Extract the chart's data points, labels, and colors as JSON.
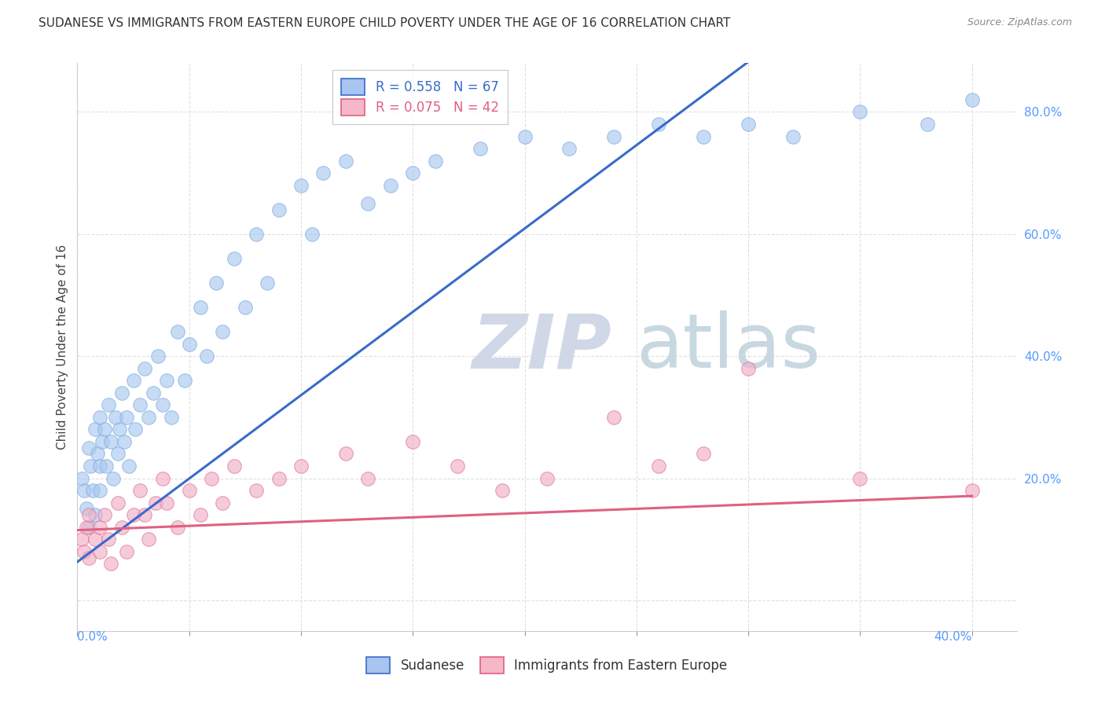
{
  "title": "SUDANESE VS IMMIGRANTS FROM EASTERN EUROPE CHILD POVERTY UNDER THE AGE OF 16 CORRELATION CHART",
  "source": "Source: ZipAtlas.com",
  "ylabel": "Child Poverty Under the Age of 16",
  "xlim": [
    0.0,
    0.42
  ],
  "ylim": [
    -0.05,
    0.88
  ],
  "yticks": [
    0.0,
    0.2,
    0.4,
    0.6,
    0.8
  ],
  "xticks": [
    0.0,
    0.05,
    0.1,
    0.15,
    0.2,
    0.25,
    0.3,
    0.35,
    0.4
  ],
  "legend1_label": "R = 0.558   N = 67",
  "legend2_label": "R = 0.075   N = 42",
  "legend1_face": "#a8c4f0",
  "legend2_face": "#f5b8c8",
  "line1_color": "#3a6bc9",
  "line2_color": "#e06080",
  "scatter1_face": "#aac8f0",
  "scatter1_edge": "#7aaae0",
  "scatter2_face": "#f0b0c8",
  "scatter2_edge": "#e07090",
  "tick_color": "#5599ff",
  "ylabel_color": "#444444",
  "grid_color": "#e0e0e0",
  "watermark_zip_color": "#d0d8e8",
  "watermark_atlas_color": "#c8d8e0",
  "bottom_legend1": "Sudanese",
  "bottom_legend2": "Immigrants from Eastern Europe",
  "sudanese_x": [
    0.002,
    0.003,
    0.004,
    0.005,
    0.005,
    0.006,
    0.007,
    0.008,
    0.008,
    0.009,
    0.01,
    0.01,
    0.01,
    0.011,
    0.012,
    0.013,
    0.014,
    0.015,
    0.016,
    0.017,
    0.018,
    0.019,
    0.02,
    0.021,
    0.022,
    0.023,
    0.025,
    0.026,
    0.028,
    0.03,
    0.032,
    0.034,
    0.036,
    0.038,
    0.04,
    0.042,
    0.045,
    0.048,
    0.05,
    0.055,
    0.058,
    0.062,
    0.065,
    0.07,
    0.075,
    0.08,
    0.085,
    0.09,
    0.1,
    0.105,
    0.11,
    0.12,
    0.13,
    0.14,
    0.15,
    0.16,
    0.18,
    0.2,
    0.22,
    0.24,
    0.26,
    0.28,
    0.3,
    0.32,
    0.35,
    0.38,
    0.4
  ],
  "sudanese_y": [
    0.2,
    0.18,
    0.15,
    0.25,
    0.12,
    0.22,
    0.18,
    0.28,
    0.14,
    0.24,
    0.3,
    0.22,
    0.18,
    0.26,
    0.28,
    0.22,
    0.32,
    0.26,
    0.2,
    0.3,
    0.24,
    0.28,
    0.34,
    0.26,
    0.3,
    0.22,
    0.36,
    0.28,
    0.32,
    0.38,
    0.3,
    0.34,
    0.4,
    0.32,
    0.36,
    0.3,
    0.44,
    0.36,
    0.42,
    0.48,
    0.4,
    0.52,
    0.44,
    0.56,
    0.48,
    0.6,
    0.52,
    0.64,
    0.68,
    0.6,
    0.7,
    0.72,
    0.65,
    0.68,
    0.7,
    0.72,
    0.74,
    0.76,
    0.74,
    0.76,
    0.78,
    0.76,
    0.78,
    0.76,
    0.8,
    0.78,
    0.82
  ],
  "eastern_x": [
    0.002,
    0.003,
    0.004,
    0.005,
    0.005,
    0.008,
    0.01,
    0.01,
    0.012,
    0.014,
    0.015,
    0.018,
    0.02,
    0.022,
    0.025,
    0.028,
    0.03,
    0.032,
    0.035,
    0.038,
    0.04,
    0.045,
    0.05,
    0.055,
    0.06,
    0.065,
    0.07,
    0.08,
    0.09,
    0.1,
    0.12,
    0.13,
    0.15,
    0.17,
    0.19,
    0.21,
    0.24,
    0.26,
    0.28,
    0.3,
    0.35,
    0.4
  ],
  "eastern_y": [
    0.1,
    0.08,
    0.12,
    0.07,
    0.14,
    0.1,
    0.12,
    0.08,
    0.14,
    0.1,
    0.06,
    0.16,
    0.12,
    0.08,
    0.14,
    0.18,
    0.14,
    0.1,
    0.16,
    0.2,
    0.16,
    0.12,
    0.18,
    0.14,
    0.2,
    0.16,
    0.22,
    0.18,
    0.2,
    0.22,
    0.24,
    0.2,
    0.26,
    0.22,
    0.18,
    0.2,
    0.3,
    0.22,
    0.24,
    0.38,
    0.2,
    0.18
  ]
}
